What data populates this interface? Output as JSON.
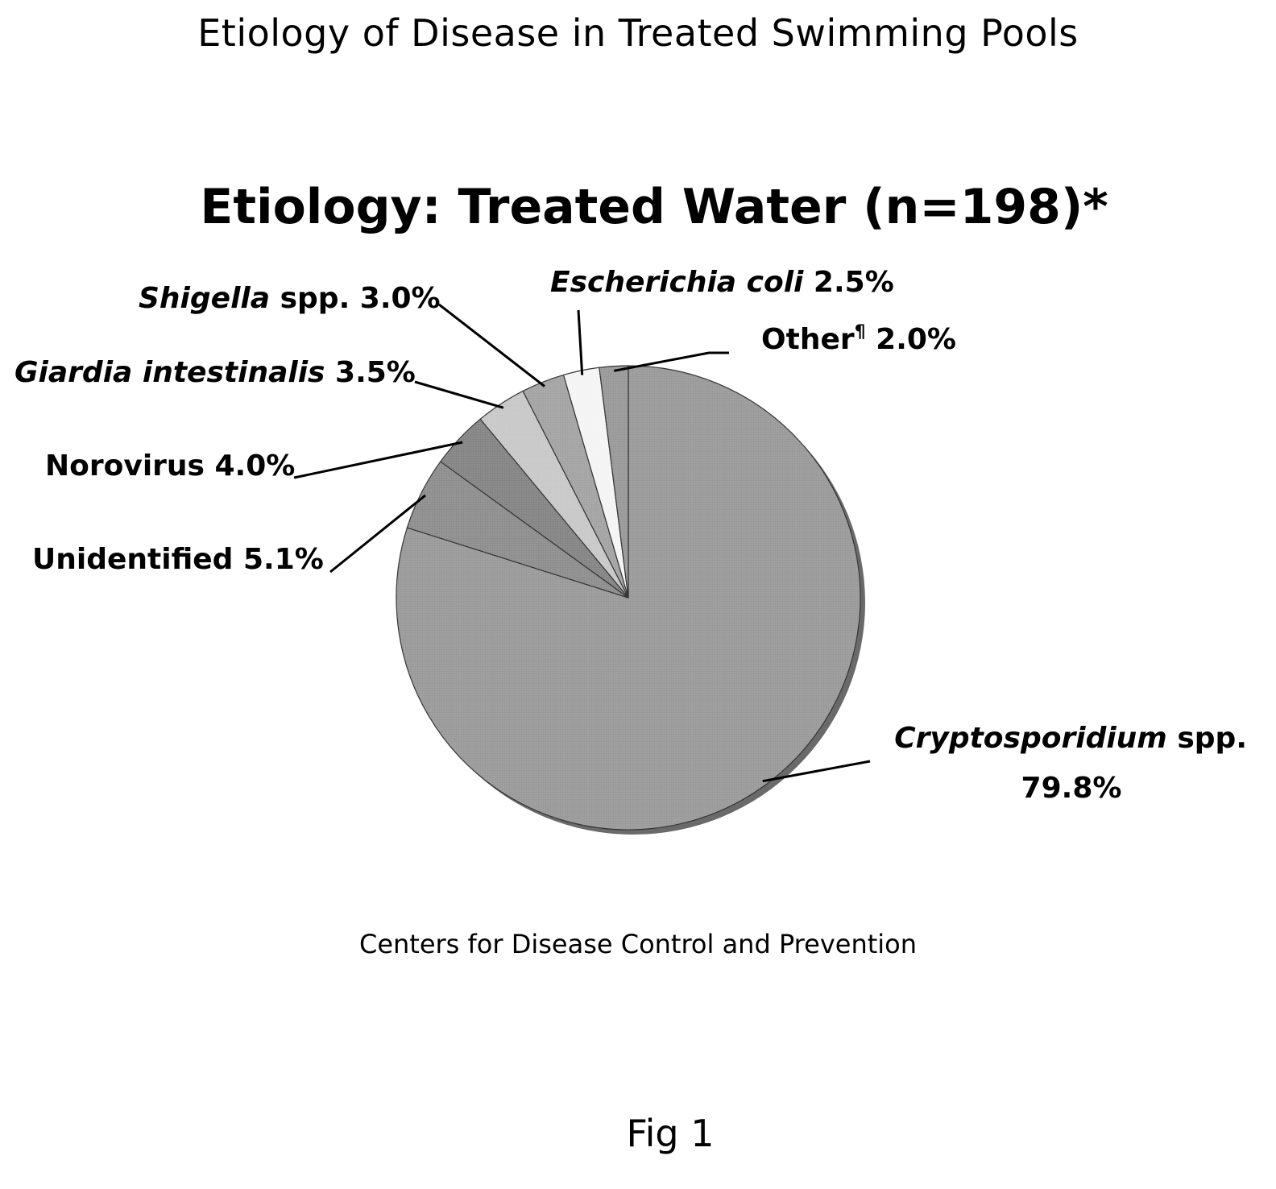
{
  "page": {
    "title": "Etiology of Disease in Treated Swimming Pools",
    "source": "Centers for Disease Control and Prevention",
    "figure_label": "Fig 1"
  },
  "colors": {
    "background": "#ffffff",
    "text": "#000000",
    "leader": "#000000"
  },
  "chart_data": {
    "type": "pie",
    "title": "Etiology: Treated Water (n=198)*",
    "start_angle_deg": 0,
    "direction": "clockwise",
    "slices": [
      {
        "name": "Cryptosporidium spp.",
        "label_italic": "Cryptosporidium",
        "label_plain": " spp.",
        "value": 79.8,
        "value_label": "79.8%",
        "color": "#9a9a9a"
      },
      {
        "name": "Unidentified",
        "label_italic": "",
        "label_plain": "Unidentified",
        "value": 5.1,
        "value_label": "5.1%",
        "color": "#8e8e8e"
      },
      {
        "name": "Norovirus",
        "label_italic": "",
        "label_plain": "Norovirus",
        "value": 4.0,
        "value_label": "4.0%",
        "color": "#858585"
      },
      {
        "name": "Giardia intestinalis",
        "label_italic": "Giardia intestinalis",
        "label_plain": "",
        "value": 3.5,
        "value_label": "3.5%",
        "color": "#c8c8c8"
      },
      {
        "name": "Shigella spp.",
        "label_italic": "Shigella",
        "label_plain": " spp.",
        "value": 3.0,
        "value_label": "3.0%",
        "color": "#a4a4a4"
      },
      {
        "name": "Escherichia coli",
        "label_italic": "Escherichia coli",
        "label_plain": "",
        "value": 2.5,
        "value_label": "2.5%",
        "color": "#f4f4f4"
      },
      {
        "name": "Other¶",
        "label_italic": "",
        "label_plain": "Other",
        "label_sup": "¶",
        "value": 2.0,
        "value_label": "2.0%",
        "color": "#999999"
      }
    ]
  }
}
